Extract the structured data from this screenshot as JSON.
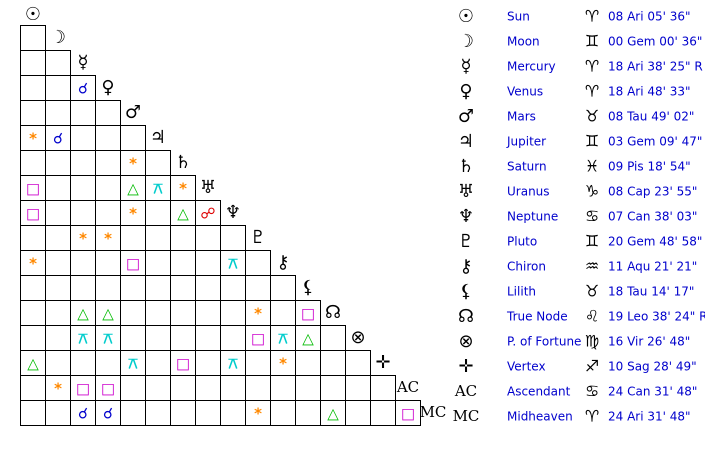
{
  "planets": [
    {
      "glyph": "☉",
      "name": "Sun",
      "sign": "♈︎",
      "position": "08 Ari 05' 36\""
    },
    {
      "glyph": "☽",
      "name": "Moon",
      "sign": "♊︎",
      "position": "00 Gem 00' 36\""
    },
    {
      "glyph": "☿",
      "name": "Mercury",
      "sign": "♈︎",
      "position": "18 Ari 38' 25\" R"
    },
    {
      "glyph": "♀",
      "name": "Venus",
      "sign": "♈︎",
      "position": "18 Ari 48' 33\""
    },
    {
      "glyph": "♂",
      "name": "Mars",
      "sign": "♉︎",
      "position": "08 Tau 49' 02\""
    },
    {
      "glyph": "♃",
      "name": "Jupiter",
      "sign": "♊︎",
      "position": "03 Gem 09' 47\""
    },
    {
      "glyph": "♄",
      "name": "Saturn",
      "sign": "♓︎",
      "position": "09 Pis 18' 54\""
    },
    {
      "glyph": "♅",
      "name": "Uranus",
      "sign": "♑︎",
      "position": "08 Cap 23' 55\""
    },
    {
      "glyph": "♆",
      "name": "Neptune",
      "sign": "♋︎",
      "position": "07 Can 38' 03\""
    },
    {
      "glyph": "♇",
      "name": "Pluto",
      "sign": "♊︎",
      "position": "20 Gem 48' 58\""
    },
    {
      "glyph": "⚷",
      "name": "Chiron",
      "sign": "♒︎",
      "position": "11 Aqu 21' 21\""
    },
    {
      "glyph": "⚸",
      "name": "Lilith",
      "sign": "♉︎",
      "position": "18 Tau 14' 17\""
    },
    {
      "glyph": "☊",
      "name": "True Node",
      "sign": "♌︎",
      "position": "19 Leo 38' 24\" R"
    },
    {
      "glyph": "⊗",
      "name": "P. of Fortune",
      "sign": "♍︎",
      "position": "16 Vir 26' 48\""
    },
    {
      "glyph": "✛",
      "name": "Vertex",
      "sign": "♐︎",
      "position": "10 Sag 28' 49\""
    },
    {
      "glyph": "AC",
      "name": "Ascendant",
      "sign": "♋︎",
      "position": "24 Can 31' 48\""
    },
    {
      "glyph": "MC",
      "name": "Midheaven",
      "sign": "♈︎",
      "position": "24 Ari 31' 48\""
    }
  ],
  "aspect_grid": [
    [
      null
    ],
    [
      null,
      null
    ],
    [
      null,
      null,
      "☌"
    ],
    [
      null,
      null,
      null,
      null
    ],
    [
      "*",
      "☌",
      null,
      null,
      null
    ],
    [
      null,
      null,
      null,
      null,
      "*",
      null
    ],
    [
      "□",
      null,
      null,
      null,
      "△",
      "⚻",
      "*"
    ],
    [
      "□",
      null,
      null,
      null,
      "*",
      null,
      "△",
      "☍"
    ],
    [
      null,
      null,
      "*",
      "*",
      null,
      null,
      null,
      null,
      null
    ],
    [
      "*",
      null,
      null,
      null,
      "□",
      null,
      null,
      null,
      "⚻",
      null
    ],
    [
      null,
      null,
      null,
      null,
      null,
      null,
      null,
      null,
      null,
      null,
      null
    ],
    [
      null,
      null,
      "△",
      "△",
      null,
      null,
      null,
      null,
      null,
      "*",
      null,
      "□"
    ],
    [
      null,
      null,
      "⚻",
      "⚻",
      null,
      null,
      null,
      null,
      null,
      "□",
      "⚻",
      "△",
      null
    ],
    [
      "△",
      null,
      null,
      null,
      "⚻",
      null,
      "□",
      null,
      "⚻",
      null,
      "*",
      null,
      null,
      null
    ],
    [
      null,
      "*",
      "□",
      "□",
      null,
      null,
      null,
      null,
      null,
      null,
      null,
      null,
      null,
      null,
      null
    ],
    [
      null,
      null,
      "☌",
      "☌",
      null,
      null,
      null,
      null,
      null,
      "*",
      null,
      null,
      "△",
      null,
      null,
      "□"
    ]
  ],
  "aspect_colors": {
    "☌": "#0000cc",
    "*": "#ff8800",
    "□": "#cc00cc",
    "△": "#00bb00",
    "☍": "#dd0000",
    "⚻": "#00cccc"
  }
}
